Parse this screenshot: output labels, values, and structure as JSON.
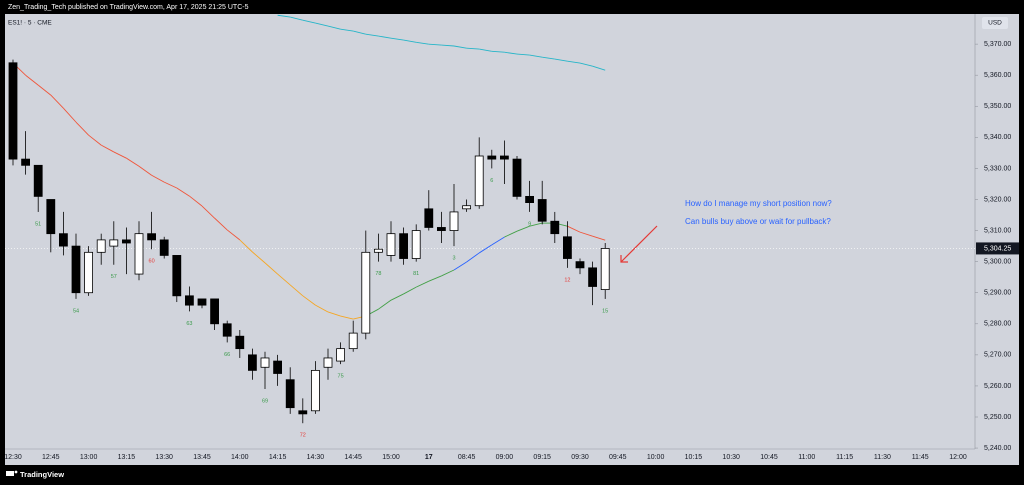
{
  "header": {
    "publisher": "Zen_Trading_Tech published on TradingView.com, Apr 17, 2025 21:25 UTC-5",
    "brand": "TradingView"
  },
  "chart_data": {
    "type": "candlestick",
    "symbol": "ES1! · 5 · CME",
    "currency": "USD",
    "categories": [
      "12:30",
      null,
      null,
      "12:45",
      null,
      null,
      "13:00",
      null,
      null,
      "13:15",
      null,
      null,
      "13:30",
      null,
      null,
      "13:45",
      null,
      null,
      "14:00",
      null,
      null,
      "14:15",
      null,
      null,
      "14:30",
      null,
      null,
      "14:45",
      null,
      null,
      "15:00",
      null,
      null,
      "17",
      null,
      null,
      "08:45",
      null,
      null,
      "09:00",
      null,
      null,
      "09:15",
      null,
      null,
      "09:30",
      null,
      null,
      "09:45",
      null,
      null,
      "10:00",
      null,
      null,
      "10:15",
      null,
      null,
      "10:30",
      null,
      null,
      "10:45",
      null,
      null,
      "11:00",
      null,
      null,
      "11:15",
      null,
      null,
      "11:30",
      null,
      null,
      "11:45",
      null,
      null,
      "12:00",
      null
    ],
    "open": [
      5364,
      5333,
      5331,
      5320,
      5309,
      5305,
      5290,
      5303,
      5305,
      5307,
      5296,
      5309,
      5307,
      5302,
      5289,
      5288,
      5288,
      5280,
      5276,
      5270,
      5266,
      5268,
      5262,
      5252,
      5252,
      5266,
      5268,
      5272,
      5277,
      5303,
      5302,
      5309,
      5301,
      5317,
      5311,
      5310,
      5317,
      5318,
      5334,
      5334,
      5333,
      5321,
      5320,
      5313,
      5308,
      5300,
      5298,
      5291,
      null,
      null,
      null,
      null,
      null,
      null,
      null,
      null,
      null,
      null,
      null,
      null,
      null,
      null,
      null,
      null,
      null,
      null,
      null,
      null,
      null,
      null,
      null,
      null,
      null,
      null,
      null,
      null,
      null
    ],
    "high": [
      5365,
      5342,
      5331,
      5320,
      5316,
      5309,
      5305,
      5309,
      5313,
      5311,
      5313,
      5316,
      5308,
      5302,
      5292,
      5288,
      5288,
      5281,
      5278,
      5272,
      5271,
      5270,
      5266,
      5256,
      5268,
      5272,
      5274,
      5281,
      5310,
      5309,
      5313,
      5311,
      5312,
      5323,
      5316,
      5325,
      5320,
      5340,
      5336,
      5339,
      5334,
      5326,
      5326,
      5316,
      5313,
      5301,
      5300,
      5306,
      null,
      null,
      null,
      null,
      null,
      null,
      null,
      null,
      null,
      null,
      null,
      null,
      null,
      null,
      null,
      null,
      null,
      null,
      null,
      null,
      null,
      null,
      null,
      null,
      null,
      null,
      null,
      null,
      null
    ],
    "low": [
      5331,
      5328,
      5316,
      5303,
      5302,
      5288,
      5289,
      5299,
      5299,
      5296,
      5294,
      5304,
      5301,
      5287,
      5284,
      5285,
      5278,
      5274,
      5269,
      5262,
      5259,
      5260,
      5251,
      5248,
      5251,
      5262,
      5267,
      5271,
      5275,
      5300,
      5300,
      5299,
      5300,
      5310,
      5306,
      5305,
      5316,
      5317,
      5330,
      5325,
      5320,
      5316,
      5312,
      5306,
      5298,
      5296,
      5286,
      5288,
      null,
      null,
      null,
      null,
      null,
      null,
      null,
      null,
      null,
      null,
      null,
      null,
      null,
      null,
      null,
      null,
      null,
      null,
      null,
      null,
      null,
      null,
      null,
      null,
      null,
      null,
      null,
      null,
      null
    ],
    "close": [
      5333,
      5331,
      5321,
      5309,
      5305,
      5290,
      5303,
      5307,
      5307,
      5306,
      5309,
      5307,
      5302,
      5289,
      5286,
      5286,
      5280,
      5276,
      5272,
      5265,
      5269,
      5264,
      5253,
      5251,
      5265,
      5269,
      5272,
      5277,
      5303,
      5304,
      5309,
      5301,
      5310,
      5311,
      5310,
      5316,
      5318,
      5334,
      5333,
      5333,
      5321,
      5319,
      5313,
      5309,
      5301,
      5298,
      5292,
      5304.25,
      null,
      null,
      null,
      null,
      null,
      null,
      null,
      null,
      null,
      null,
      null,
      null,
      null,
      null,
      null,
      null,
      null,
      null,
      null,
      null,
      null,
      null,
      null,
      null,
      null,
      null,
      null,
      null,
      null
    ],
    "up_color": "#ffffff",
    "down_color": "#000000",
    "bar_counts": [
      null,
      null,
      {
        "text": "51",
        "color": "#3a9a4a"
      },
      null,
      null,
      {
        "text": "54",
        "color": "#3a9a4a"
      },
      null,
      null,
      {
        "text": "57",
        "color": "#3a9a4a"
      },
      null,
      null,
      {
        "text": "60",
        "color": "#e53935"
      },
      null,
      null,
      {
        "text": "63",
        "color": "#3a9a4a"
      },
      null,
      null,
      {
        "text": "66",
        "color": "#3a9a4a"
      },
      null,
      null,
      {
        "text": "69",
        "color": "#3a9a4a"
      },
      null,
      null,
      {
        "text": "72",
        "color": "#e53935"
      },
      null,
      null,
      {
        "text": "75",
        "color": "#3a9a4a"
      },
      null,
      null,
      {
        "text": "78",
        "color": "#3a9a4a"
      },
      null,
      null,
      {
        "text": "81",
        "color": "#3a9a4a"
      },
      null,
      null,
      {
        "text": "3",
        "color": "#3a9a4a"
      },
      null,
      null,
      {
        "text": "6",
        "color": "#3a9a4a"
      },
      null,
      null,
      {
        "text": "9",
        "color": "#3a9a4a"
      },
      null,
      null,
      {
        "text": "12",
        "color": "#e53935"
      },
      null,
      null,
      {
        "text": "15",
        "color": "#3a9a4a"
      },
      null,
      null,
      null,
      null,
      null,
      null,
      null,
      null,
      null,
      null,
      null,
      null,
      null,
      null,
      null,
      null,
      null,
      null,
      null,
      null,
      null,
      null,
      null,
      null,
      null,
      null,
      null,
      null,
      null,
      null
    ],
    "lines": [
      {
        "values": [
          5363.9,
          5360.0,
          5356.8,
          5353.6,
          5349.4,
          5344.9,
          5340.7,
          5337.5,
          5335.3,
          5333.3,
          5330.7,
          5327.8,
          5325.6,
          5323.7,
          5321.1,
          5317.9,
          5314.0,
          5310.2,
          5307.0,
          5303.1,
          5299.6,
          5296.0,
          5292.5,
          5289.0,
          5286.0,
          5283.8,
          5282.5,
          5281.5,
          5282.5,
          5284.7,
          5287.6,
          5289.6,
          5291.8,
          5293.7,
          5295.4,
          5297.3,
          5299.9,
          5302.8,
          5305.4,
          5307.9,
          5309.8,
          5311.4,
          5312.4,
          5312.4,
          5311.4,
          5309.5,
          5308.2,
          5306.9,
          null,
          null,
          null,
          null,
          null,
          null,
          null,
          null,
          null,
          null,
          null,
          null,
          null,
          null,
          null,
          null,
          null,
          null,
          null,
          null,
          null,
          null,
          null,
          null,
          null,
          null,
          null,
          null,
          null
        ],
        "colors": [
          "#f0553a",
          "#f0553a",
          "#f0553a",
          "#f0553a",
          "#f0553a",
          "#f0553a",
          "#f0553a",
          "#f0553a",
          "#f0553a",
          "#f0553a",
          "#f0553a",
          "#f0553a",
          "#f0553a",
          "#f0553a",
          "#f0553a",
          "#f0553a",
          "#f0553a",
          "#f0553a",
          "#f5a623",
          "#f5a623",
          "#f5a623",
          "#f5a623",
          "#f5a623",
          "#f5a623",
          "#f5a623",
          "#f5a623",
          "#f5a623",
          "#f5a623",
          "#43a047",
          "#43a047",
          "#43a047",
          "#43a047",
          "#43a047",
          "#43a047",
          "#43a047",
          "#2962ff",
          "#2962ff",
          "#2962ff",
          "#2962ff",
          "#43a047",
          "#43a047",
          "#43a047",
          "#43a047",
          "#43a047",
          "#f0553a",
          "#f0553a",
          "#f0553a",
          "#f0553a",
          null,
          null,
          null,
          null,
          null,
          null,
          null,
          null,
          null,
          null,
          null,
          null,
          null,
          null,
          null,
          null,
          null,
          null,
          null,
          null,
          null,
          null,
          null,
          null,
          null,
          null,
          null,
          null,
          null
        ]
      },
      {
        "color": "#26b5c8",
        "values": [
          null,
          null,
          null,
          null,
          null,
          null,
          null,
          null,
          null,
          null,
          null,
          null,
          null,
          null,
          null,
          null,
          null,
          null,
          null,
          null,
          null,
          5379.3,
          5378.7,
          5377.7,
          5376.8,
          5375.8,
          5374.8,
          5374.2,
          5373.2,
          5372.6,
          5371.9,
          5371.3,
          5370.6,
          5370.0,
          5369.7,
          5369.4,
          5368.7,
          5368.4,
          5367.7,
          5367.4,
          5366.8,
          5366.5,
          5365.8,
          5365.2,
          5364.5,
          5363.9,
          5362.9,
          5361.6,
          null,
          null,
          null,
          null,
          null,
          null,
          null,
          null,
          null,
          null,
          null,
          null,
          null,
          null,
          null,
          null,
          null,
          null,
          null,
          null,
          null,
          null,
          null,
          null,
          null,
          null,
          null,
          null,
          null
        ]
      }
    ],
    "last_price": {
      "value": 5304.25,
      "label": "5,304.25"
    },
    "annotations": [
      {
        "text": "How do I manage my short position now?",
        "color": "#2962ff"
      },
      {
        "text": "Can bulls buy above or wait for pullback?",
        "color": "#2962ff"
      }
    ],
    "ylim": [
      5239.7,
      5379.7
    ],
    "yticks": [
      {
        "value": 5240,
        "label": "5,240.00"
      },
      {
        "value": 5250,
        "label": "5,250.00"
      },
      {
        "value": 5260,
        "label": "5,260.00"
      },
      {
        "value": 5270,
        "label": "5,270.00"
      },
      {
        "value": 5280,
        "label": "5,280.00"
      },
      {
        "value": 5290,
        "label": "5,290.00"
      },
      {
        "value": 5300,
        "label": "5,300.00"
      },
      {
        "value": 5310,
        "label": "5,310.00"
      },
      {
        "value": 5320,
        "label": "5,320.00"
      },
      {
        "value": 5330,
        "label": "5,330.00"
      },
      {
        "value": 5340,
        "label": "5,340.00"
      },
      {
        "value": 5350,
        "label": "5,350.00"
      },
      {
        "value": 5360,
        "label": "5,360.00"
      },
      {
        "value": 5370,
        "label": "5,370.00"
      }
    ],
    "grid": false
  }
}
